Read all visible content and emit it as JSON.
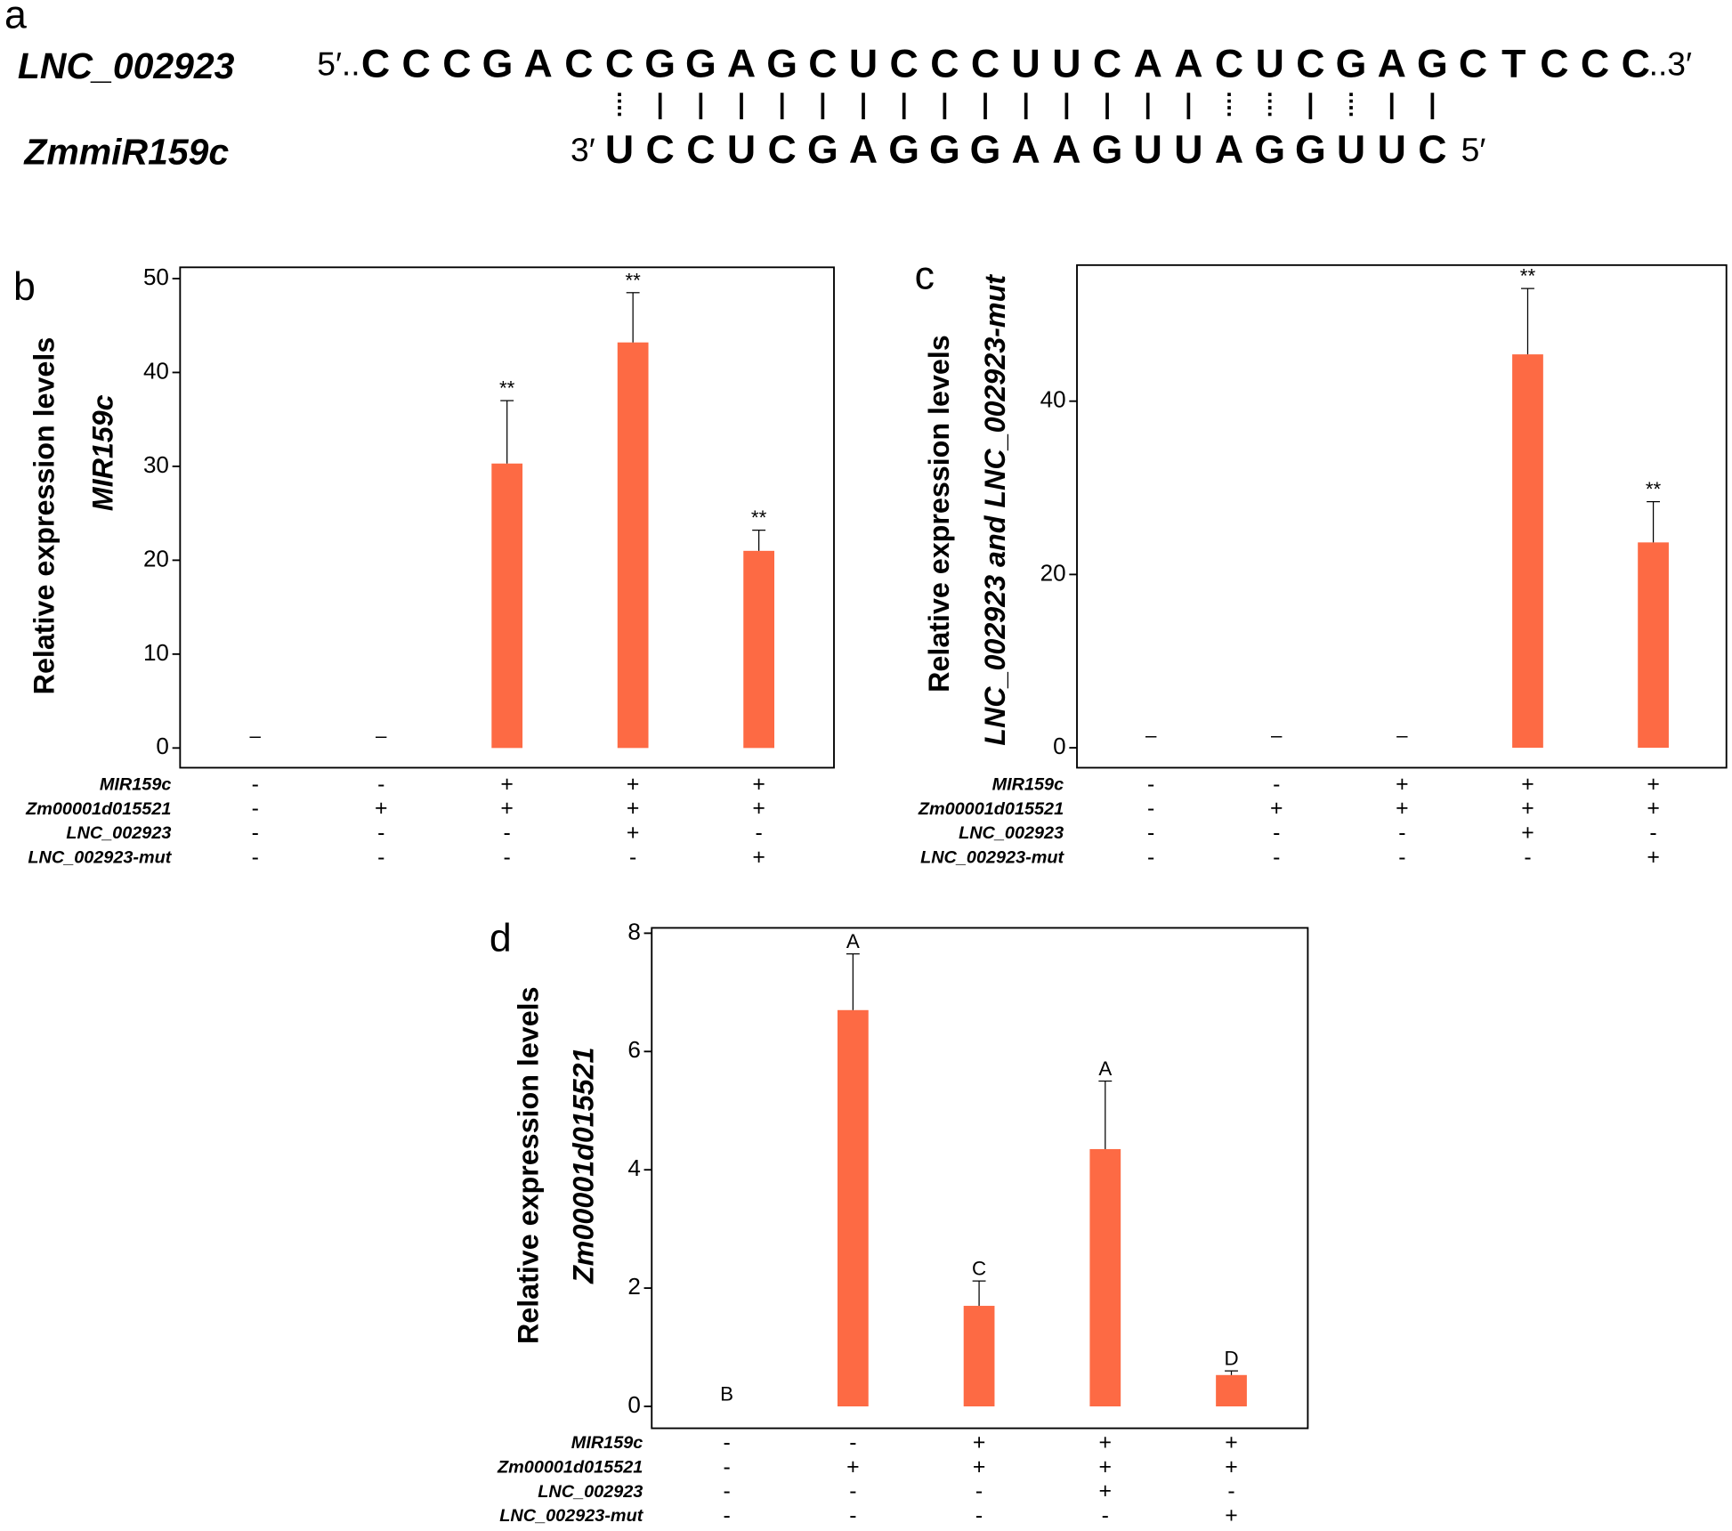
{
  "alignment": {
    "label": "a",
    "top_name": "LNC_002923",
    "top_prefix": "5′..",
    "top_sequence": [
      "C",
      "C",
      "C",
      "G",
      "A",
      "C",
      "C",
      "G",
      "G",
      "A",
      "G",
      "C",
      "U",
      "C",
      "C",
      "C",
      "U",
      "U",
      "C",
      "A",
      "A",
      "C",
      "U",
      "C",
      "G",
      "A",
      "G",
      "C",
      "T",
      "C",
      "C",
      "C"
    ],
    "top_suffix": "..3′",
    "bottom_name": "ZmmiR159c",
    "bottom_prefix": "3′",
    "bottom_sequence": [
      "U",
      "C",
      "C",
      "U",
      "C",
      "G",
      "A",
      "G",
      "G",
      "G",
      "A",
      "A",
      "G",
      "U",
      "U",
      "A",
      "G",
      "G",
      "U",
      "U",
      "C"
    ],
    "bottom_suffix": "5′"
  },
  "chart_data": [
    {
      "type": "bar",
      "label": "b",
      "ylabel": "Relative expression levels",
      "ylabel_gene": "MIR159c",
      "values": [
        0,
        0,
        30.3,
        43.2,
        21.0
      ],
      "errors": [
        0,
        0,
        6.7,
        5.3,
        2.2
      ],
      "annotations": [
        "–",
        "–",
        "**",
        "**",
        "**"
      ],
      "color": "#fd6a44",
      "ylim": [
        -2.1,
        51.2
      ],
      "yticks": [
        0,
        10,
        20,
        30,
        40,
        50
      ],
      "conditions": [
        {
          "name": "MIR159c",
          "values": [
            "-",
            "-",
            "+",
            "+",
            "+"
          ]
        },
        {
          "name": "Zm00001d015521",
          "values": [
            "-",
            "+",
            "+",
            "+",
            "+"
          ]
        },
        {
          "name": "LNC_002923",
          "values": [
            "-",
            "-",
            "-",
            "+",
            "-"
          ]
        },
        {
          "name": "LNC_002923-mut",
          "values": [
            "-",
            "-",
            "-",
            "-",
            "+"
          ]
        }
      ]
    },
    {
      "type": "bar",
      "label": "c",
      "ylabel": "Relative expression levels",
      "ylabel_gene": "LNC_002923 and LNC_002923-mut",
      "values": [
        0,
        0,
        0,
        45.4,
        23.7
      ],
      "errors": [
        0,
        0,
        0,
        7.6,
        4.7
      ],
      "annotations": [
        "–",
        "–",
        "–",
        "**",
        "**"
      ],
      "color": "#fd6a44",
      "ylim": [
        -2.3,
        55.7
      ],
      "yticks": [
        0,
        20,
        40
      ],
      "conditions": [
        {
          "name": "MIR159c",
          "values": [
            "-",
            "-",
            "+",
            "+",
            "+"
          ]
        },
        {
          "name": "Zm00001d015521",
          "values": [
            "-",
            "+",
            "+",
            "+",
            "+"
          ]
        },
        {
          "name": "LNC_002923",
          "values": [
            "-",
            "-",
            "-",
            "+",
            "-"
          ]
        },
        {
          "name": "LNC_002923-mut",
          "values": [
            "-",
            "-",
            "-",
            "-",
            "+"
          ]
        }
      ]
    },
    {
      "type": "bar",
      "label": "d",
      "ylabel": "Relative expression levels",
      "ylabel_gene": "Zm00001d015521",
      "values": [
        0,
        6.7,
        1.7,
        4.35,
        0.53
      ],
      "errors": [
        0,
        0.95,
        0.42,
        1.15,
        0.07
      ],
      "annotations": [
        "B",
        "A",
        "C",
        "A",
        "D"
      ],
      "color": "#fd6a44",
      "ylim": [
        -0.37,
        8.09
      ],
      "yticks": [
        0,
        2,
        4,
        6,
        8
      ],
      "conditions": [
        {
          "name": "MIR159c",
          "values": [
            "-",
            "-",
            "+",
            "+",
            "+"
          ]
        },
        {
          "name": "Zm00001d015521",
          "values": [
            "-",
            "+",
            "+",
            "+",
            "+"
          ]
        },
        {
          "name": "LNC_002923",
          "values": [
            "-",
            "-",
            "-",
            "+",
            "-"
          ]
        },
        {
          "name": "LNC_002923-mut",
          "values": [
            "-",
            "-",
            "-",
            "-",
            "+"
          ]
        }
      ]
    }
  ]
}
